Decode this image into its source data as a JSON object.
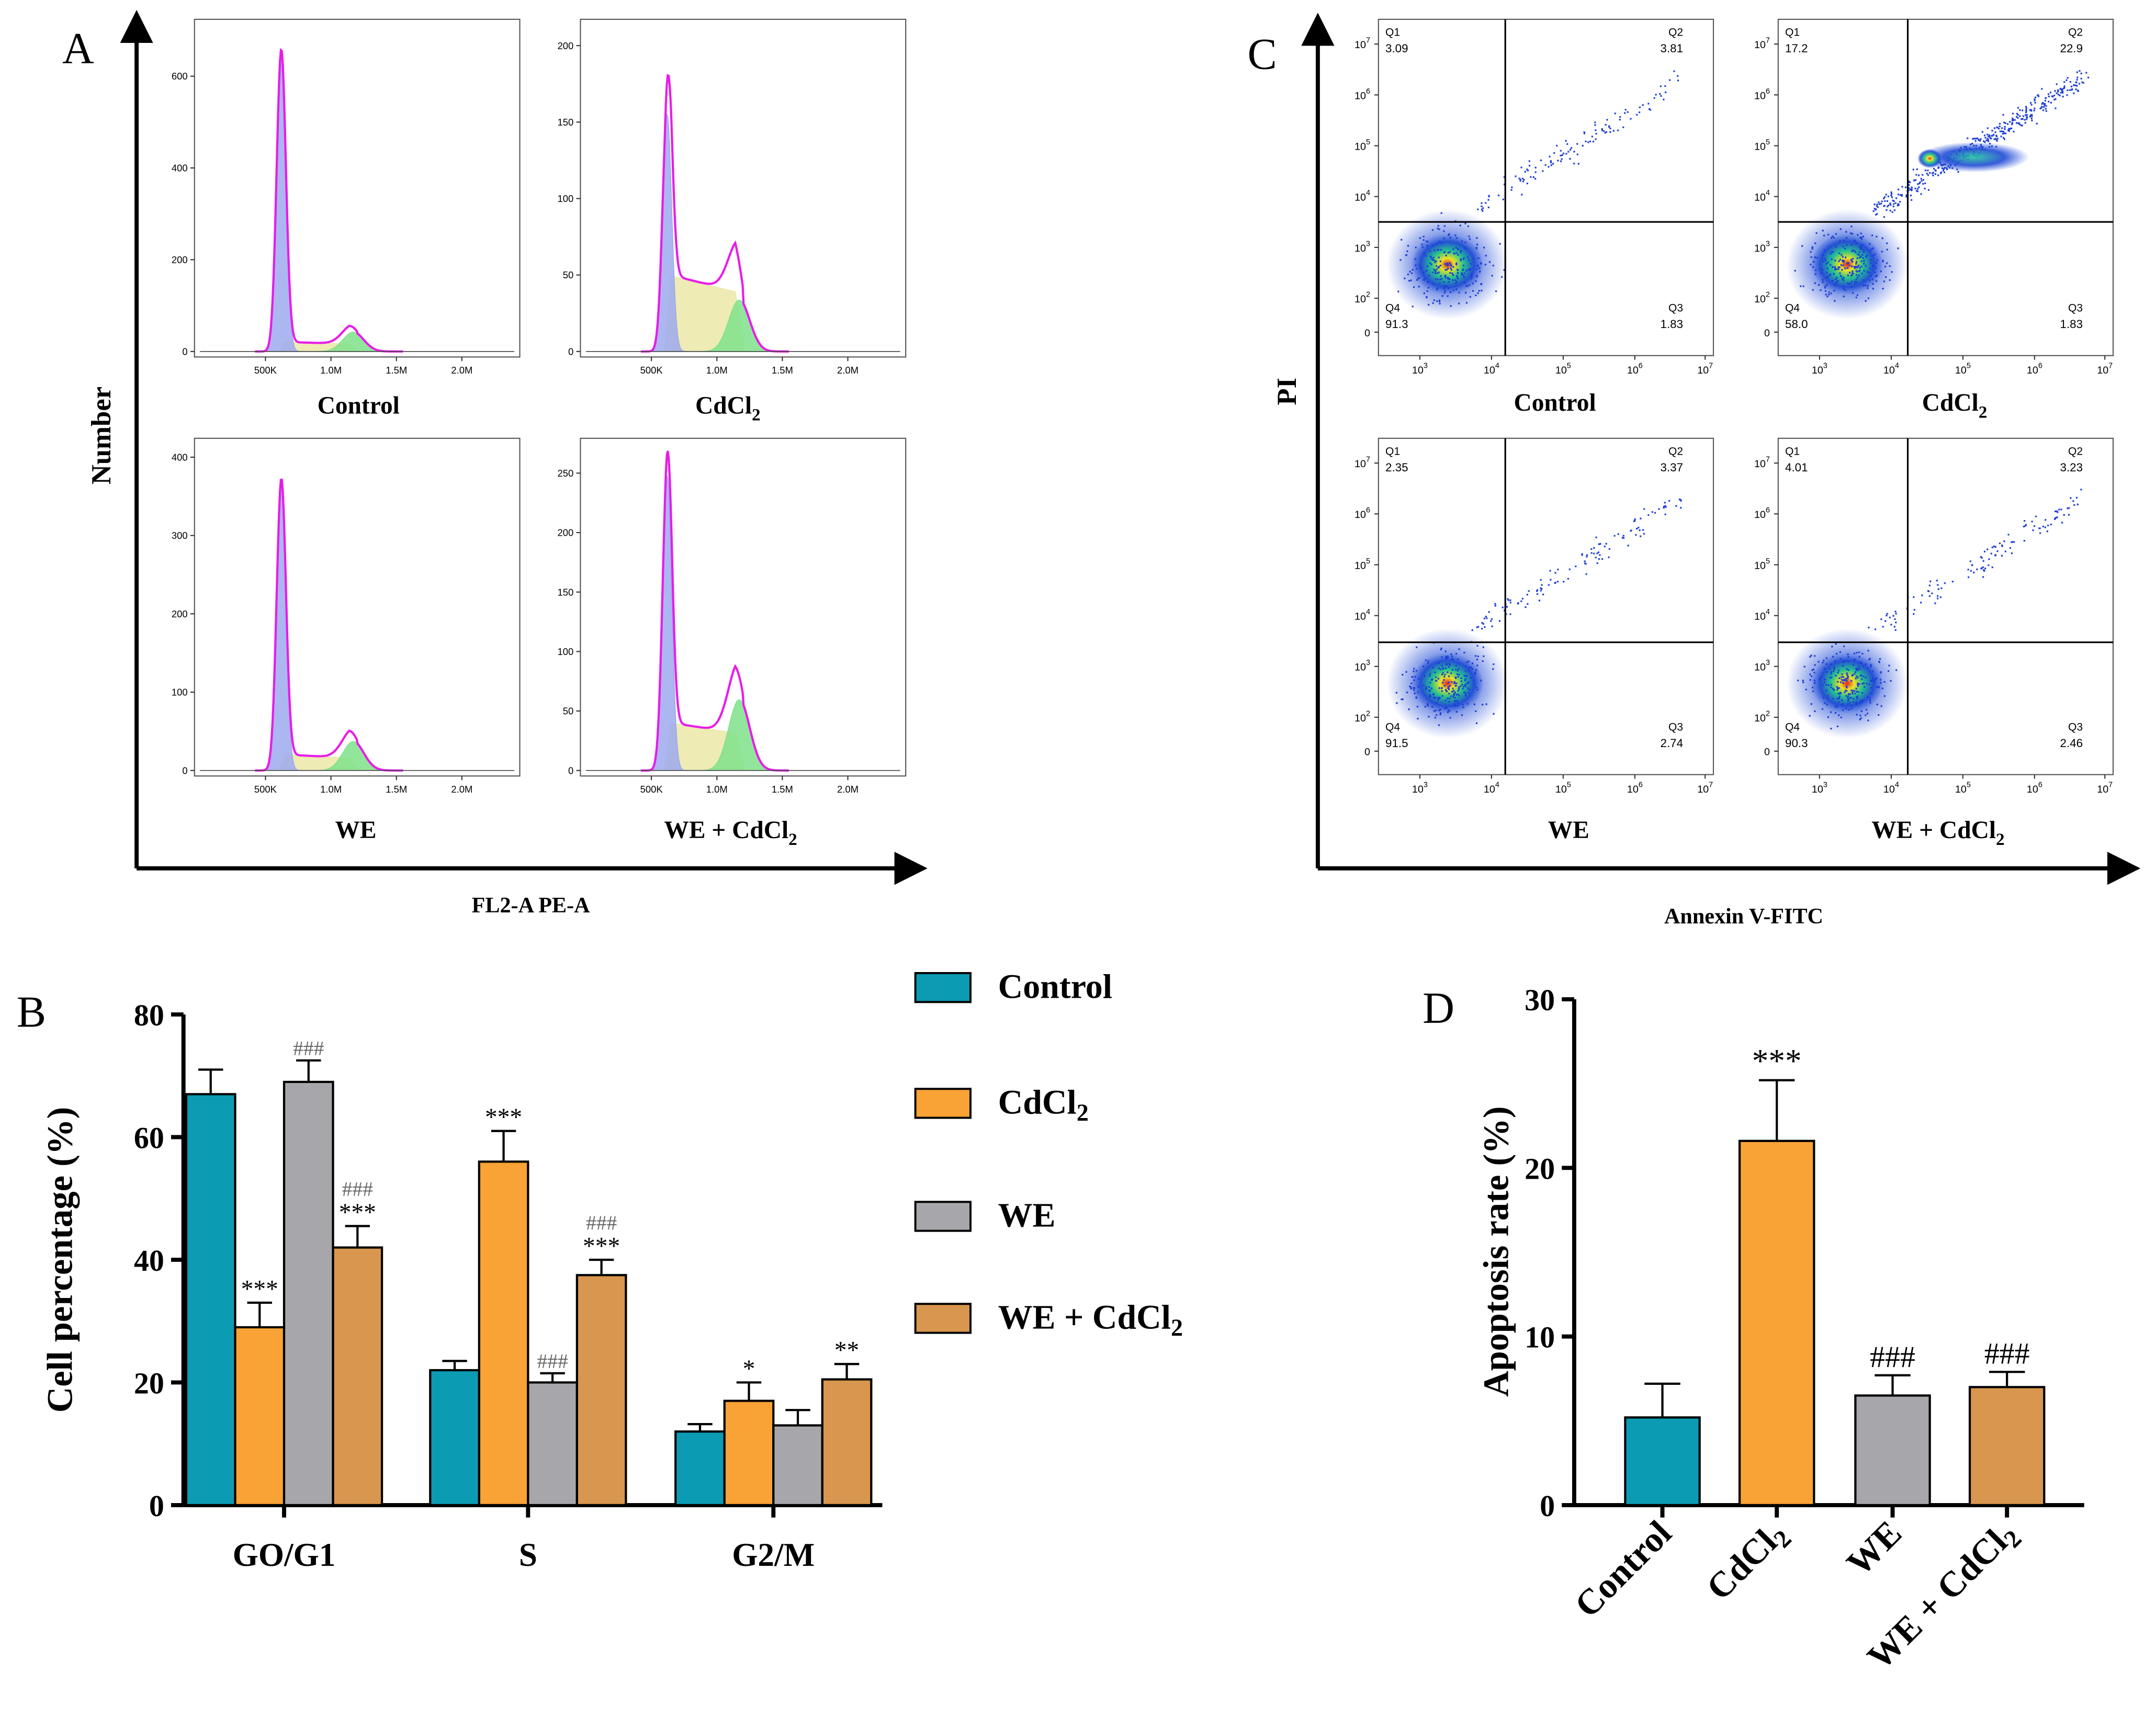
{
  "colors": {
    "control": "#0b9bb3",
    "cdcl2": "#f9a235",
    "we": "#a6a6ab",
    "we_cdcl2": "#d8964e",
    "peak_g1": "#9ea9ee",
    "peak_s": "#ece7a7",
    "peak_g2": "#7fe28b",
    "fit_line": "#e81ce9"
  },
  "panel_a": {
    "letter": "A",
    "ylabel": "Number",
    "xlabel": "FL2-A PE-A",
    "x_ticks": [
      "500K",
      "1.0M",
      "1.5M",
      "2.0M"
    ],
    "histograms": [
      {
        "name": "Control",
        "sub": "",
        "y_ticks": [
          "0",
          "200",
          "400",
          "600"
        ],
        "y_max": 700
      },
      {
        "name": "CdCl",
        "sub": "2",
        "y_ticks": [
          "0",
          "50",
          "100",
          "150",
          "200"
        ],
        "y_max": 210
      },
      {
        "name": "WE",
        "sub": "",
        "y_ticks": [
          "0",
          "100",
          "200",
          "300",
          "400"
        ],
        "y_max": 410
      },
      {
        "name": "WE + CdCl",
        "sub": "2",
        "y_ticks": [
          "0",
          "50",
          "100",
          "150",
          "200",
          "250"
        ],
        "y_max": 270
      }
    ]
  },
  "panel_c": {
    "letter": "C",
    "ylabel": "PI",
    "xlabel": "Annexin V-FITC",
    "y_ticks": [
      "0",
      "10",
      "10",
      "10",
      "10",
      "10",
      "10"
    ],
    "y_exps": [
      "",
      "2",
      "3",
      "4",
      "5",
      "6",
      "7"
    ],
    "x_ticks": [
      "10",
      "10",
      "10",
      "10",
      "10"
    ],
    "x_exps": [
      "3",
      "4",
      "5",
      "6",
      "7"
    ],
    "quadrant_labels": [
      "Q1",
      "Q2",
      "Q3",
      "Q4"
    ],
    "plots": [
      {
        "name": "Control",
        "sub": "",
        "q1": "3.09",
        "q2": "3.81",
        "q3": "1.83",
        "q4": "91.3"
      },
      {
        "name": "CdCl",
        "sub": "2",
        "q1": "17.2",
        "q2": "22.9",
        "q3": "1.83",
        "q4": "58.0"
      },
      {
        "name": "WE",
        "sub": "",
        "q1": "2.35",
        "q2": "3.37",
        "q3": "2.74",
        "q4": "91.5"
      },
      {
        "name": "WE + CdCl",
        "sub": "2",
        "q1": "4.01",
        "q2": "3.23",
        "q3": "2.46",
        "q4": "90.3"
      }
    ]
  },
  "chart_data": [
    {
      "type": "bar",
      "panel": "B",
      "title": "",
      "ylabel": "Cell percentage (%)",
      "xlabel": "",
      "ylim": [
        0,
        80
      ],
      "y_ticks": [
        "0",
        "20",
        "40",
        "60",
        "80"
      ],
      "categories": [
        "GO/G1",
        "S",
        "G2/M"
      ],
      "series": [
        {
          "name": "Control",
          "sub": "",
          "values": [
            67,
            22,
            12
          ],
          "errors": [
            4,
            1.5,
            1.2
          ],
          "labels": [
            [
              "",
              ""
            ],
            [
              "",
              ""
            ],
            [
              "",
              ""
            ]
          ]
        },
        {
          "name": "CdCl",
          "sub": "2",
          "values": [
            29,
            56,
            17
          ],
          "errors": [
            4,
            5,
            3
          ],
          "labels": [
            [
              "***",
              ""
            ],
            [
              "***",
              ""
            ],
            [
              "*",
              ""
            ]
          ]
        },
        {
          "name": "WE",
          "sub": "",
          "values": [
            69,
            20,
            13
          ],
          "errors": [
            3.5,
            1.5,
            2.5
          ],
          "labels": [
            [
              "###",
              ""
            ],
            [
              "###",
              ""
            ],
            [
              "",
              ""
            ]
          ]
        },
        {
          "name": "WE + CdCl",
          "sub": "2",
          "values": [
            42,
            37.5,
            20.5
          ],
          "errors": [
            3.5,
            2.5,
            2.5
          ],
          "labels": [
            [
              "***",
              "###"
            ],
            [
              "***",
              "###"
            ],
            [
              "**",
              ""
            ]
          ]
        }
      ],
      "legend": "right"
    },
    {
      "type": "bar",
      "panel": "D",
      "title": "",
      "ylabel": "Apoptosis rate (%)",
      "xlabel": "",
      "ylim": [
        0,
        30
      ],
      "y_ticks": [
        "0",
        "10",
        "20",
        "30"
      ],
      "categories": [
        {
          "name": "Control",
          "sub": ""
        },
        {
          "name": "CdCl",
          "sub": "2"
        },
        {
          "name": "WE",
          "sub": ""
        },
        {
          "name": "WE + CdCl",
          "sub": "2"
        }
      ],
      "values": [
        5.2,
        21.6,
        6.5,
        7.0
      ],
      "errors": [
        2.0,
        3.6,
        1.2,
        0.9
      ],
      "labels": [
        "",
        "***",
        "###",
        "###"
      ]
    }
  ]
}
